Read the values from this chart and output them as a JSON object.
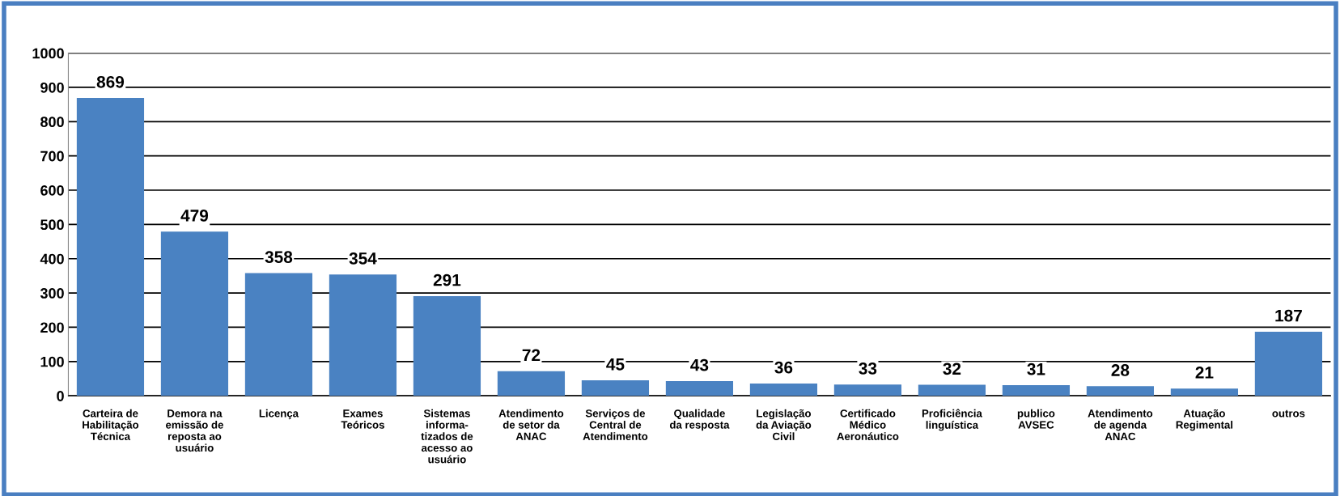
{
  "chart_data": {
    "type": "bar",
    "categories": [
      "Carteira de\nHabilitação\nTécnica",
      "Demora na\nemissão de\nreposta ao\nusuário",
      "Licença",
      "Exames\nTeóricos",
      "Sistemas\ninforma-\ntizados de\nacesso ao\nusuário",
      "Atendimento\nde setor da\nANAC",
      "Serviços de\nCentral de\nAtendimento",
      "Qualidade\nda resposta",
      "Legislação\nda Aviação\nCivil",
      "Certificado\nMédico\nAeronáutico",
      "Proficiência\nlinguística",
      "publico\nAVSEC",
      "Atendimento\nde agenda\nANAC",
      "Atuação\nRegimental",
      "outros"
    ],
    "values": [
      869,
      479,
      358,
      354,
      291,
      72,
      45,
      43,
      36,
      33,
      32,
      31,
      28,
      21,
      187
    ],
    "color": "#4a82c2",
    "ylim": [
      0,
      1000
    ],
    "yticks": [
      0,
      100,
      200,
      300,
      400,
      500,
      600,
      700,
      800,
      900,
      1000
    ],
    "grid": "y",
    "data_labels": true
  }
}
